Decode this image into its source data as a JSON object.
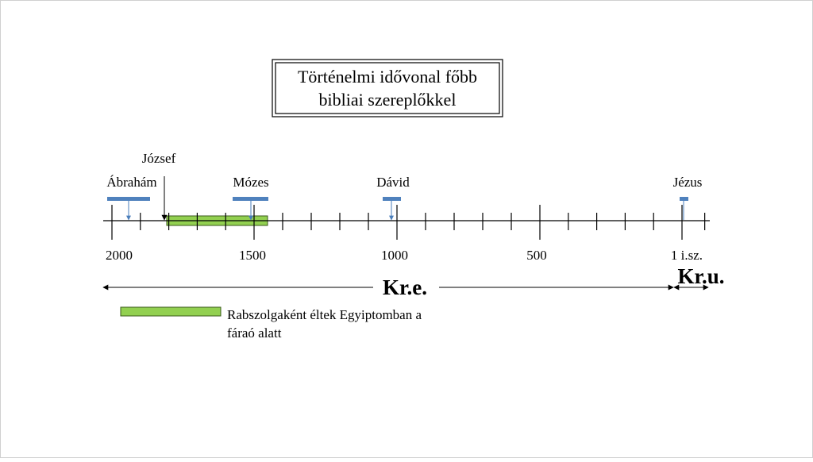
{
  "title": [
    "Történelmi idővonal főbb",
    "bibliai szereplőkkel"
  ],
  "people": [
    "Ábrahám",
    "József",
    "Mózes",
    "Dávid",
    "Jézus"
  ],
  "axis_labels": [
    "2000",
    "1500",
    "1000",
    "500",
    "1 i.sz."
  ],
  "eras": [
    "Kr.e.",
    "Kr.u."
  ],
  "legend": [
    "Rabszolgaként éltek Egyiptomban a",
    "fáraó alatt"
  ]
}
